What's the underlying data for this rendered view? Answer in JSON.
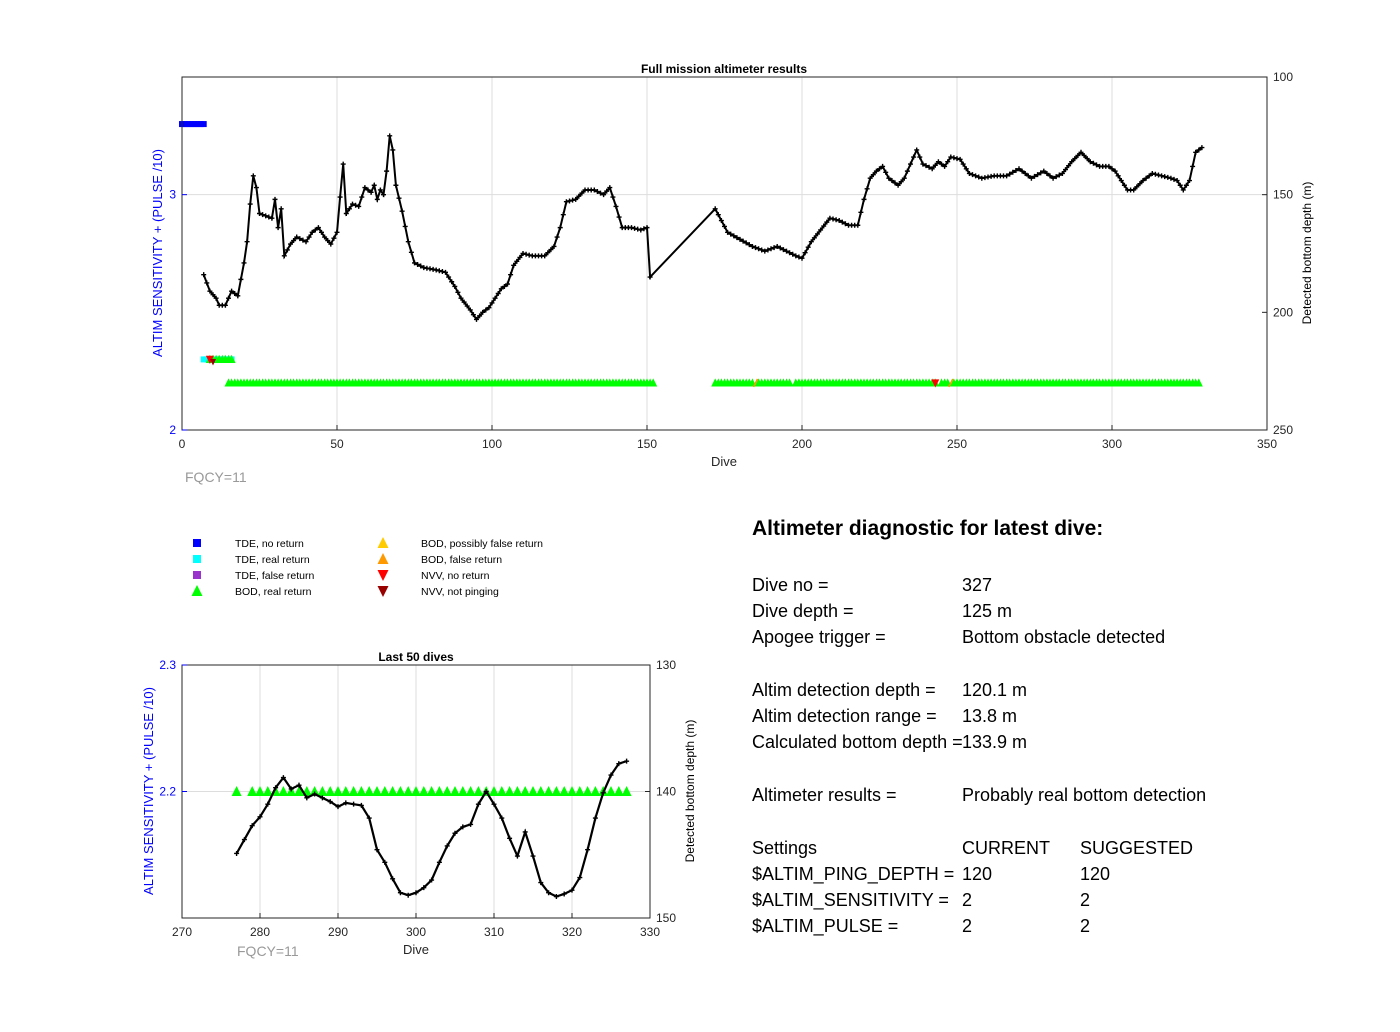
{
  "colors": {
    "left_axis": "#0000ff",
    "fqcy": "#999999",
    "depth_line": "#000000",
    "grid": "#dddddd",
    "tde_no_return": "#0000ff",
    "tde_real_return": "#00ffff",
    "tde_false_return": "#9933cc",
    "bod_real_return": "#00ff00",
    "bod_possibly_false": "#ffcc00",
    "bod_false": "#ff9900",
    "nvv_no_return": "#ff0000",
    "nvv_not_pinging": "#990000"
  },
  "chart_data": [
    {
      "type": "line",
      "title": "Full mission altimeter results",
      "xlabel": "Dive",
      "ylabel_left": "ALTIM SENSITIVITY + (PULSE /10)",
      "ylabel_right": "Detected bottom depth (m)",
      "xlim": [
        0,
        350
      ],
      "xticks": [
        0,
        50,
        100,
        150,
        200,
        250,
        300,
        350
      ],
      "ylim_left": [
        2,
        3.5
      ],
      "yticks_left": [
        2,
        3
      ],
      "ylim_right": [
        250,
        100
      ],
      "yticks_right": [
        100,
        150,
        200,
        250
      ],
      "grid": true,
      "note": "FQCY=11",
      "depth_keypoints": [
        [
          7,
          184
        ],
        [
          9,
          191
        ],
        [
          11,
          194
        ],
        [
          12,
          197
        ],
        [
          14,
          197
        ],
        [
          16,
          191
        ],
        [
          18,
          193
        ],
        [
          20,
          179
        ],
        [
          21,
          170
        ],
        [
          22,
          154
        ],
        [
          23,
          142
        ],
        [
          24,
          147
        ],
        [
          25,
          158
        ],
        [
          27,
          159
        ],
        [
          29,
          160
        ],
        [
          30,
          152
        ],
        [
          31,
          164
        ],
        [
          32,
          156
        ],
        [
          33,
          176
        ],
        [
          35,
          171
        ],
        [
          37,
          168
        ],
        [
          40,
          170
        ],
        [
          42,
          166
        ],
        [
          44,
          164
        ],
        [
          46,
          168
        ],
        [
          48,
          171
        ],
        [
          50,
          166
        ],
        [
          51,
          151
        ],
        [
          52,
          137
        ],
        [
          53,
          158
        ],
        [
          55,
          154
        ],
        [
          57,
          155
        ],
        [
          59,
          147
        ],
        [
          61,
          149
        ],
        [
          62,
          146
        ],
        [
          63,
          152
        ],
        [
          64,
          148
        ],
        [
          65,
          150
        ],
        [
          66,
          140
        ],
        [
          67,
          125
        ],
        [
          68,
          131
        ],
        [
          69,
          146
        ],
        [
          71,
          157
        ],
        [
          73,
          170
        ],
        [
          75,
          179
        ],
        [
          78,
          181
        ],
        [
          82,
          182
        ],
        [
          85,
          183
        ],
        [
          88,
          189
        ],
        [
          90,
          194
        ],
        [
          93,
          199
        ],
        [
          95,
          203
        ],
        [
          97,
          200
        ],
        [
          99,
          198
        ],
        [
          101,
          194
        ],
        [
          103,
          190
        ],
        [
          105,
          188
        ],
        [
          107,
          180
        ],
        [
          110,
          175
        ],
        [
          113,
          176
        ],
        [
          117,
          176
        ],
        [
          120,
          172
        ],
        [
          122,
          164
        ],
        [
          124,
          153
        ],
        [
          127,
          152
        ],
        [
          130,
          148
        ],
        [
          133,
          148
        ],
        [
          136,
          150
        ],
        [
          138,
          147
        ],
        [
          140,
          155
        ],
        [
          142,
          164
        ],
        [
          145,
          164
        ],
        [
          148,
          165
        ],
        [
          150,
          164
        ],
        [
          151,
          185
        ],
        [
          172,
          156
        ],
        [
          176,
          166
        ],
        [
          180,
          169
        ],
        [
          184,
          172
        ],
        [
          188,
          174
        ],
        [
          192,
          172
        ],
        [
          195,
          174
        ],
        [
          198,
          176
        ],
        [
          200,
          177
        ],
        [
          203,
          170
        ],
        [
          206,
          165
        ],
        [
          209,
          160
        ],
        [
          212,
          161
        ],
        [
          215,
          163
        ],
        [
          218,
          163
        ],
        [
          220,
          152
        ],
        [
          222,
          143
        ],
        [
          224,
          140
        ],
        [
          226,
          138
        ],
        [
          228,
          143
        ],
        [
          231,
          146
        ],
        [
          233,
          143
        ],
        [
          235,
          137
        ],
        [
          237,
          131
        ],
        [
          239,
          137
        ],
        [
          242,
          139
        ],
        [
          244,
          136
        ],
        [
          246,
          138
        ],
        [
          248,
          134
        ],
        [
          251,
          135
        ],
        [
          254,
          141
        ],
        [
          258,
          143
        ],
        [
          262,
          142
        ],
        [
          266,
          142
        ],
        [
          270,
          139
        ],
        [
          274,
          143
        ],
        [
          278,
          140
        ],
        [
          281,
          143
        ],
        [
          284,
          141
        ],
        [
          287,
          136
        ],
        [
          290,
          132
        ],
        [
          293,
          136
        ],
        [
          296,
          138
        ],
        [
          299,
          138
        ],
        [
          301,
          140
        ],
        [
          303,
          144
        ],
        [
          305,
          148
        ],
        [
          307,
          148
        ],
        [
          310,
          144
        ],
        [
          313,
          141
        ],
        [
          316,
          142
        ],
        [
          319,
          143
        ],
        [
          321,
          144
        ],
        [
          323,
          148
        ],
        [
          325,
          144
        ],
        [
          327,
          132
        ],
        [
          329,
          130
        ]
      ],
      "tde_no_return_points": [
        [
          0,
          3.3
        ],
        [
          1,
          3.3
        ],
        [
          2,
          3.3
        ],
        [
          3,
          3.3
        ],
        [
          4,
          3.3
        ],
        [
          5,
          3.3
        ],
        [
          6,
          3.3
        ],
        [
          7,
          3.3
        ]
      ],
      "tde_real_return_points": [
        [
          7,
          2.3
        ],
        [
          8,
          2.3
        ],
        [
          9,
          2.3
        ],
        [
          10,
          2.3
        ],
        [
          11,
          2.3
        ],
        [
          12,
          2.3
        ],
        [
          13,
          2.3
        ],
        [
          14,
          2.3
        ],
        [
          15,
          2.3
        ],
        [
          16,
          2.3
        ]
      ],
      "bod_real_return_ranges": [
        [
          15,
          152,
          2.2
        ],
        [
          172,
          328,
          2.2
        ]
      ],
      "bod_real_return_gaps": [
        185,
        197,
        244,
        248
      ],
      "bod_possibly_false_points": [
        [
          185,
          2.2
        ],
        [
          248,
          2.2
        ]
      ],
      "nvv_no_return_points": [
        [
          9,
          2.3
        ],
        [
          243,
          2.2
        ]
      ],
      "nvv_not_pinging_points": [
        [
          10,
          2.29
        ]
      ]
    },
    {
      "type": "line",
      "title": "Last 50 dives",
      "xlabel": "Dive",
      "ylabel_left": "ALTIM SENSITIVITY + (PULSE /10)",
      "ylabel_right": "Detected bottom depth (m)",
      "xlim": [
        270,
        330
      ],
      "xticks": [
        270,
        280,
        290,
        300,
        310,
        320,
        330
      ],
      "ylim_left": [
        2.1,
        2.3
      ],
      "yticks_left": [
        2.2,
        2.3
      ],
      "ylim_right": [
        150,
        130
      ],
      "yticks_right": [
        130,
        140,
        150
      ],
      "grid": true,
      "note": "FQCY=11",
      "depth_points": [
        [
          277,
          144.9
        ],
        [
          278,
          143.8
        ],
        [
          279,
          142.7
        ],
        [
          280,
          142.0
        ],
        [
          281,
          141.0
        ],
        [
          282,
          139.7
        ],
        [
          283,
          138.9
        ],
        [
          284,
          139.8
        ],
        [
          285,
          139.5
        ],
        [
          286,
          140.5
        ],
        [
          287,
          140.2
        ],
        [
          288,
          140.5
        ],
        [
          289,
          140.8
        ],
        [
          290,
          141.2
        ],
        [
          291,
          140.9
        ],
        [
          292,
          141.0
        ],
        [
          293,
          141.1
        ],
        [
          294,
          142.1
        ],
        [
          295,
          144.6
        ],
        [
          296,
          145.6
        ],
        [
          297,
          146.9
        ],
        [
          298,
          148.0
        ],
        [
          299,
          148.2
        ],
        [
          300,
          148.0
        ],
        [
          301,
          147.6
        ],
        [
          302,
          147.0
        ],
        [
          303,
          145.6
        ],
        [
          304,
          144.3
        ],
        [
          305,
          143.3
        ],
        [
          306,
          142.8
        ],
        [
          307,
          142.6
        ],
        [
          308,
          141.0
        ],
        [
          309,
          140.0
        ],
        [
          310,
          141.0
        ],
        [
          311,
          142.1
        ],
        [
          312,
          143.7
        ],
        [
          313,
          145.1
        ],
        [
          314,
          143.2
        ],
        [
          315,
          145.1
        ],
        [
          316,
          147.2
        ],
        [
          317,
          148.0
        ],
        [
          318,
          148.3
        ],
        [
          319,
          148.1
        ],
        [
          320,
          147.8
        ],
        [
          321,
          146.8
        ],
        [
          322,
          144.6
        ],
        [
          323,
          142.1
        ],
        [
          324,
          140.1
        ],
        [
          325,
          138.7
        ],
        [
          326,
          137.8
        ],
        [
          327,
          137.6
        ]
      ],
      "bod_real_return_x": [
        277,
        279,
        280,
        281,
        282,
        283,
        284,
        285,
        286,
        287,
        288,
        289,
        290,
        291,
        292,
        293,
        294,
        295,
        296,
        297,
        298,
        299,
        300,
        301,
        302,
        303,
        304,
        305,
        306,
        307,
        308,
        309,
        310,
        311,
        312,
        313,
        314,
        315,
        316,
        317,
        318,
        319,
        320,
        321,
        322,
        323,
        324,
        325,
        326,
        327
      ],
      "bod_real_return_y": 2.2
    }
  ],
  "legend": {
    "items_left": [
      {
        "label": "TDE, no return",
        "marker": "square",
        "color": "#0000ff"
      },
      {
        "label": "TDE, real return",
        "marker": "square",
        "color": "#00ffff"
      },
      {
        "label": "TDE, false return",
        "marker": "square",
        "color": "#9933cc"
      },
      {
        "label": "BOD, real return",
        "marker": "triangle-up",
        "color": "#00ff00"
      }
    ],
    "items_right": [
      {
        "label": "BOD, possibly false return",
        "marker": "triangle-up",
        "color": "#ffcc00"
      },
      {
        "label": "BOD, false return",
        "marker": "triangle-up",
        "color": "#ff9900"
      },
      {
        "label": "NVV, no return",
        "marker": "triangle-down",
        "color": "#ff0000"
      },
      {
        "label": "NVV, not pinging",
        "marker": "triangle-down",
        "color": "#990000"
      }
    ]
  },
  "diagnostic": {
    "title": "Altimeter diagnostic for latest dive:",
    "dive_no_label": "Dive no =",
    "dive_no_value": "327",
    "dive_depth_label": "Dive depth =",
    "dive_depth_value": "125 m",
    "apogee_label": "Apogee trigger =",
    "apogee_value": "Bottom obstacle detected",
    "altim_detection_depth_label": "Altim detection depth =",
    "altim_detection_depth_value": "120.1 m",
    "altim_detection_range_label": "Altim detection range =",
    "altim_detection_range_value": "13.8 m",
    "calc_bottom_label": "Calculated bottom depth =",
    "calc_bottom_value": "133.9 m",
    "results_label": "Altimeter results =",
    "results_value": "Probably real bottom detection",
    "settings_label": "Settings",
    "current_label": "CURRENT",
    "suggested_label": "SUGGESTED",
    "ping_depth_label": "$ALTIM_PING_DEPTH =",
    "ping_depth_current": "120",
    "ping_depth_suggested": "120",
    "sensitivity_label": "$ALTIM_SENSITIVITY =",
    "sensitivity_current": "2",
    "sensitivity_suggested": "2",
    "pulse_label": "$ALTIM_PULSE =",
    "pulse_current": "2",
    "pulse_suggested": "2"
  }
}
